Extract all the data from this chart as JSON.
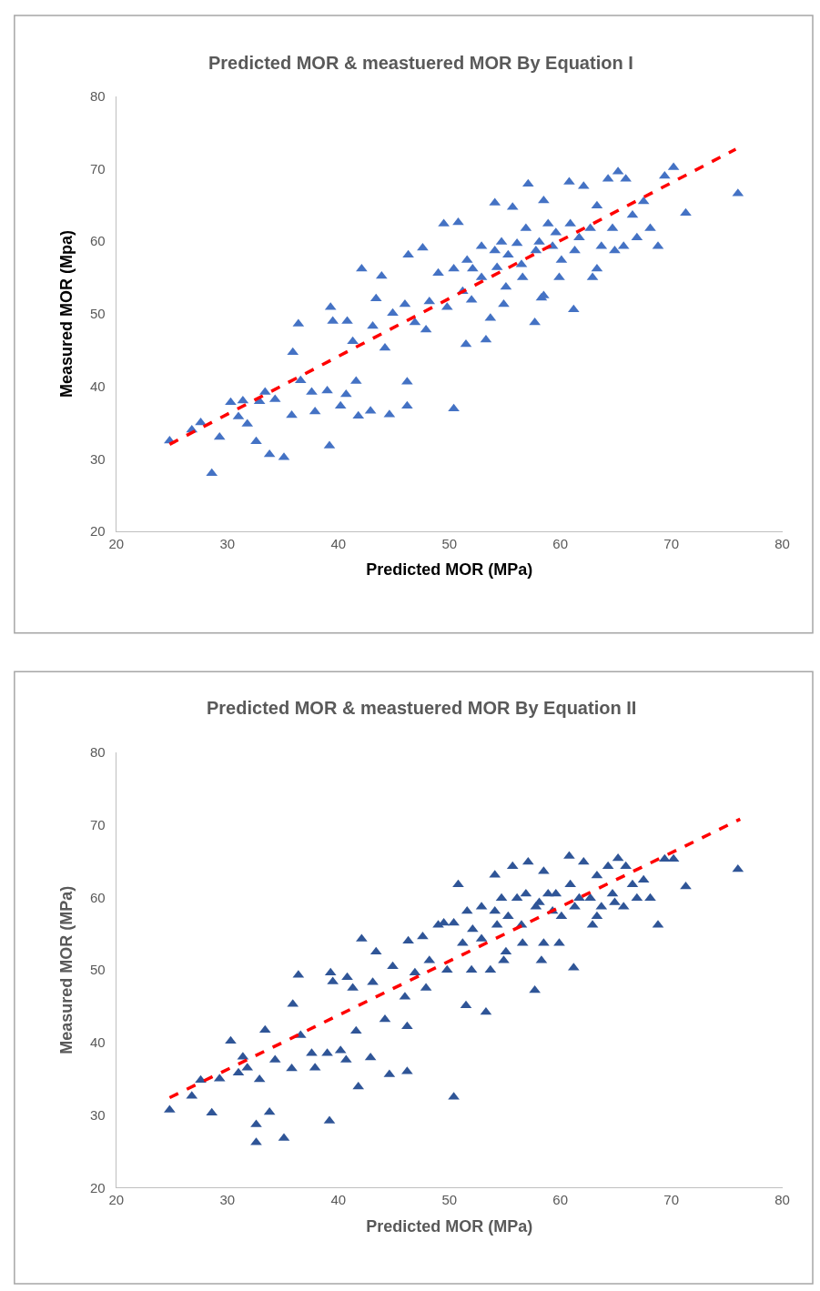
{
  "chart_data": [
    {
      "type": "scatter",
      "title": "Predicted MOR & meastuered MOR By Equation I",
      "xlabel": "Predicted MOR (MPa)",
      "ylabel": "Measured MOR (Mpa)",
      "xlim": [
        20,
        80
      ],
      "ylim": [
        20,
        80
      ],
      "xticks": [
        20,
        30,
        40,
        50,
        60,
        70,
        80
      ],
      "yticks": [
        20,
        30,
        40,
        50,
        60,
        70,
        80
      ],
      "series": [
        {
          "marker": "triangle",
          "color": "#4472c4",
          "x": [
            24.8,
            26.8,
            27.6,
            28.6,
            29.3,
            30.3,
            31.0,
            31.4,
            31.8,
            32.6,
            32.9,
            33.4,
            33.8,
            34.3,
            35.1,
            35.8,
            35.9,
            36.4,
            36.6,
            37.6,
            37.9,
            39.0,
            39.2,
            39.3,
            39.5,
            40.2,
            40.7,
            40.8,
            41.3,
            41.6,
            41.8,
            42.1,
            42.9,
            43.1,
            43.4,
            43.9,
            44.2,
            44.6,
            44.9,
            46.0,
            46.2,
            46.2,
            46.3,
            46.9,
            47.6,
            47.9,
            48.2,
            49.5,
            49.8,
            50.4,
            50.8,
            51.2,
            51.5,
            51.6,
            52.1,
            52.9,
            53.3,
            53.7,
            54.1,
            54.3,
            54.7,
            55.1,
            55.7,
            56.1,
            56.6,
            57.1,
            57.7,
            57.8,
            58.3,
            58.5,
            58.9,
            59.3,
            59.9,
            60.8,
            60.9,
            61.2,
            61.7,
            62.1,
            62.7,
            62.9,
            63.3,
            63.7,
            64.3,
            64.7,
            65.2,
            65.7,
            65.9,
            66.5,
            66.9,
            67.5,
            68.1,
            68.8,
            69.4,
            70.2,
            71.3,
            76.0,
            55.3,
            56.5,
            58.1,
            60.1,
            61.3,
            59.6,
            56.9,
            54.1,
            52.9,
            52.0,
            50.4,
            49.0,
            63.3,
            64.9,
            58.5,
            54.9
          ],
          "values": [
            32.5,
            34.0,
            35.0,
            28.0,
            33.0,
            37.8,
            35.8,
            38.0,
            34.8,
            32.4,
            37.9,
            39.2,
            30.6,
            38.2,
            30.2,
            36.0,
            44.7,
            48.6,
            40.8,
            39.2,
            36.5,
            39.4,
            31.8,
            50.9,
            49.0,
            37.3,
            38.9,
            49.0,
            46.2,
            40.7,
            35.9,
            56.2,
            36.6,
            48.3,
            52.1,
            55.2,
            45.3,
            36.1,
            50.1,
            51.3,
            40.6,
            37.3,
            58.1,
            48.8,
            59.1,
            47.8,
            51.7,
            62.4,
            50.9,
            36.9,
            62.6,
            53.1,
            45.8,
            57.4,
            56.2,
            55.0,
            46.4,
            49.4,
            65.3,
            56.4,
            59.9,
            53.7,
            64.7,
            59.7,
            55.0,
            67.9,
            48.8,
            58.7,
            52.2,
            65.6,
            62.4,
            59.3,
            55.0,
            68.2,
            62.4,
            50.6,
            60.5,
            67.6,
            61.8,
            55.0,
            64.9,
            59.3,
            68.6,
            61.8,
            69.6,
            59.3,
            68.6,
            63.6,
            60.5,
            65.5,
            61.8,
            59.3,
            69.0,
            70.2,
            63.9,
            66.6,
            58.1,
            56.8,
            59.9,
            57.4,
            58.7,
            61.2,
            61.8,
            58.7,
            59.3,
            51.9,
            56.2,
            55.6,
            56.2,
            58.7,
            52.5,
            51.3
          ]
        },
        {
          "type": "line",
          "marker": "none",
          "color": "#ff0000",
          "line_style": "dashed",
          "x": [
            24.8,
            75.8
          ],
          "values": [
            32.0,
            72.7
          ]
        }
      ]
    },
    {
      "type": "scatter",
      "title": "Predicted MOR & meastuered MOR By Equation II",
      "xlabel": "Predicted MOR (MPa)",
      "ylabel": "Measured MOR (MPa)",
      "xlim": [
        20,
        80
      ],
      "ylim": [
        20,
        80
      ],
      "xticks": [
        20,
        30,
        40,
        50,
        60,
        70,
        80
      ],
      "yticks": [
        20,
        30,
        40,
        50,
        60,
        70,
        80
      ],
      "series": [
        {
          "marker": "triangle",
          "color": "#2f5597",
          "x": [
            24.8,
            26.8,
            27.6,
            28.6,
            29.3,
            30.3,
            31.0,
            31.4,
            31.8,
            32.6,
            32.6,
            32.9,
            33.4,
            33.8,
            34.3,
            35.1,
            35.8,
            35.9,
            36.4,
            36.6,
            37.6,
            37.9,
            39.0,
            39.2,
            39.3,
            39.5,
            40.2,
            40.7,
            40.8,
            41.3,
            41.6,
            41.8,
            42.1,
            42.9,
            43.1,
            43.4,
            44.2,
            44.6,
            44.9,
            46.0,
            46.2,
            46.2,
            46.3,
            46.9,
            47.6,
            47.9,
            48.2,
            49.5,
            49.8,
            50.4,
            50.8,
            51.2,
            51.5,
            51.6,
            52.1,
            52.9,
            53.3,
            53.7,
            54.1,
            54.3,
            54.7,
            55.1,
            55.7,
            56.1,
            56.6,
            57.1,
            57.7,
            57.8,
            58.3,
            58.5,
            58.9,
            59.3,
            59.9,
            60.8,
            60.9,
            61.2,
            61.7,
            62.1,
            62.7,
            62.9,
            63.3,
            63.7,
            64.3,
            64.7,
            65.2,
            65.7,
            65.9,
            66.5,
            66.9,
            67.5,
            68.1,
            68.8,
            69.4,
            70.2,
            71.3,
            76.0,
            55.3,
            56.5,
            58.1,
            60.1,
            61.3,
            59.6,
            56.9,
            54.1,
            52.9,
            52.0,
            50.4,
            49.0,
            63.3,
            64.9,
            58.5,
            54.9
          ],
          "values": [
            30.7,
            32.6,
            34.8,
            30.3,
            35.0,
            40.2,
            35.8,
            38.0,
            36.5,
            28.7,
            26.2,
            34.9,
            41.7,
            30.4,
            37.6,
            26.8,
            36.4,
            45.3,
            49.3,
            41.0,
            38.5,
            36.5,
            38.5,
            29.2,
            49.6,
            48.4,
            38.9,
            37.6,
            49.0,
            47.5,
            41.6,
            33.9,
            54.3,
            37.9,
            48.3,
            52.5,
            43.2,
            35.6,
            50.5,
            46.3,
            42.2,
            36.0,
            54.0,
            49.6,
            54.6,
            47.5,
            51.3,
            56.5,
            50.0,
            32.5,
            61.8,
            53.7,
            45.1,
            58.1,
            55.6,
            54.3,
            44.2,
            50.0,
            63.1,
            56.2,
            59.9,
            52.5,
            64.3,
            59.9,
            53.7,
            64.9,
            47.2,
            58.7,
            51.3,
            63.6,
            60.5,
            58.1,
            53.7,
            65.7,
            61.8,
            50.3,
            59.9,
            64.9,
            59.9,
            56.2,
            63.0,
            58.7,
            64.3,
            60.5,
            65.4,
            58.7,
            64.3,
            61.8,
            59.9,
            62.4,
            59.9,
            56.2,
            65.3,
            65.3,
            61.5,
            63.9,
            57.4,
            56.2,
            59.3,
            57.4,
            58.7,
            60.5,
            60.5,
            58.1,
            58.7,
            50.0,
            56.5,
            56.2,
            57.4,
            59.3,
            53.7,
            51.3
          ]
        },
        {
          "type": "line",
          "marker": "none",
          "color": "#ff0000",
          "line_style": "dashed",
          "x": [
            24.8,
            76.2
          ],
          "values": [
            32.4,
            70.8
          ]
        }
      ]
    }
  ]
}
